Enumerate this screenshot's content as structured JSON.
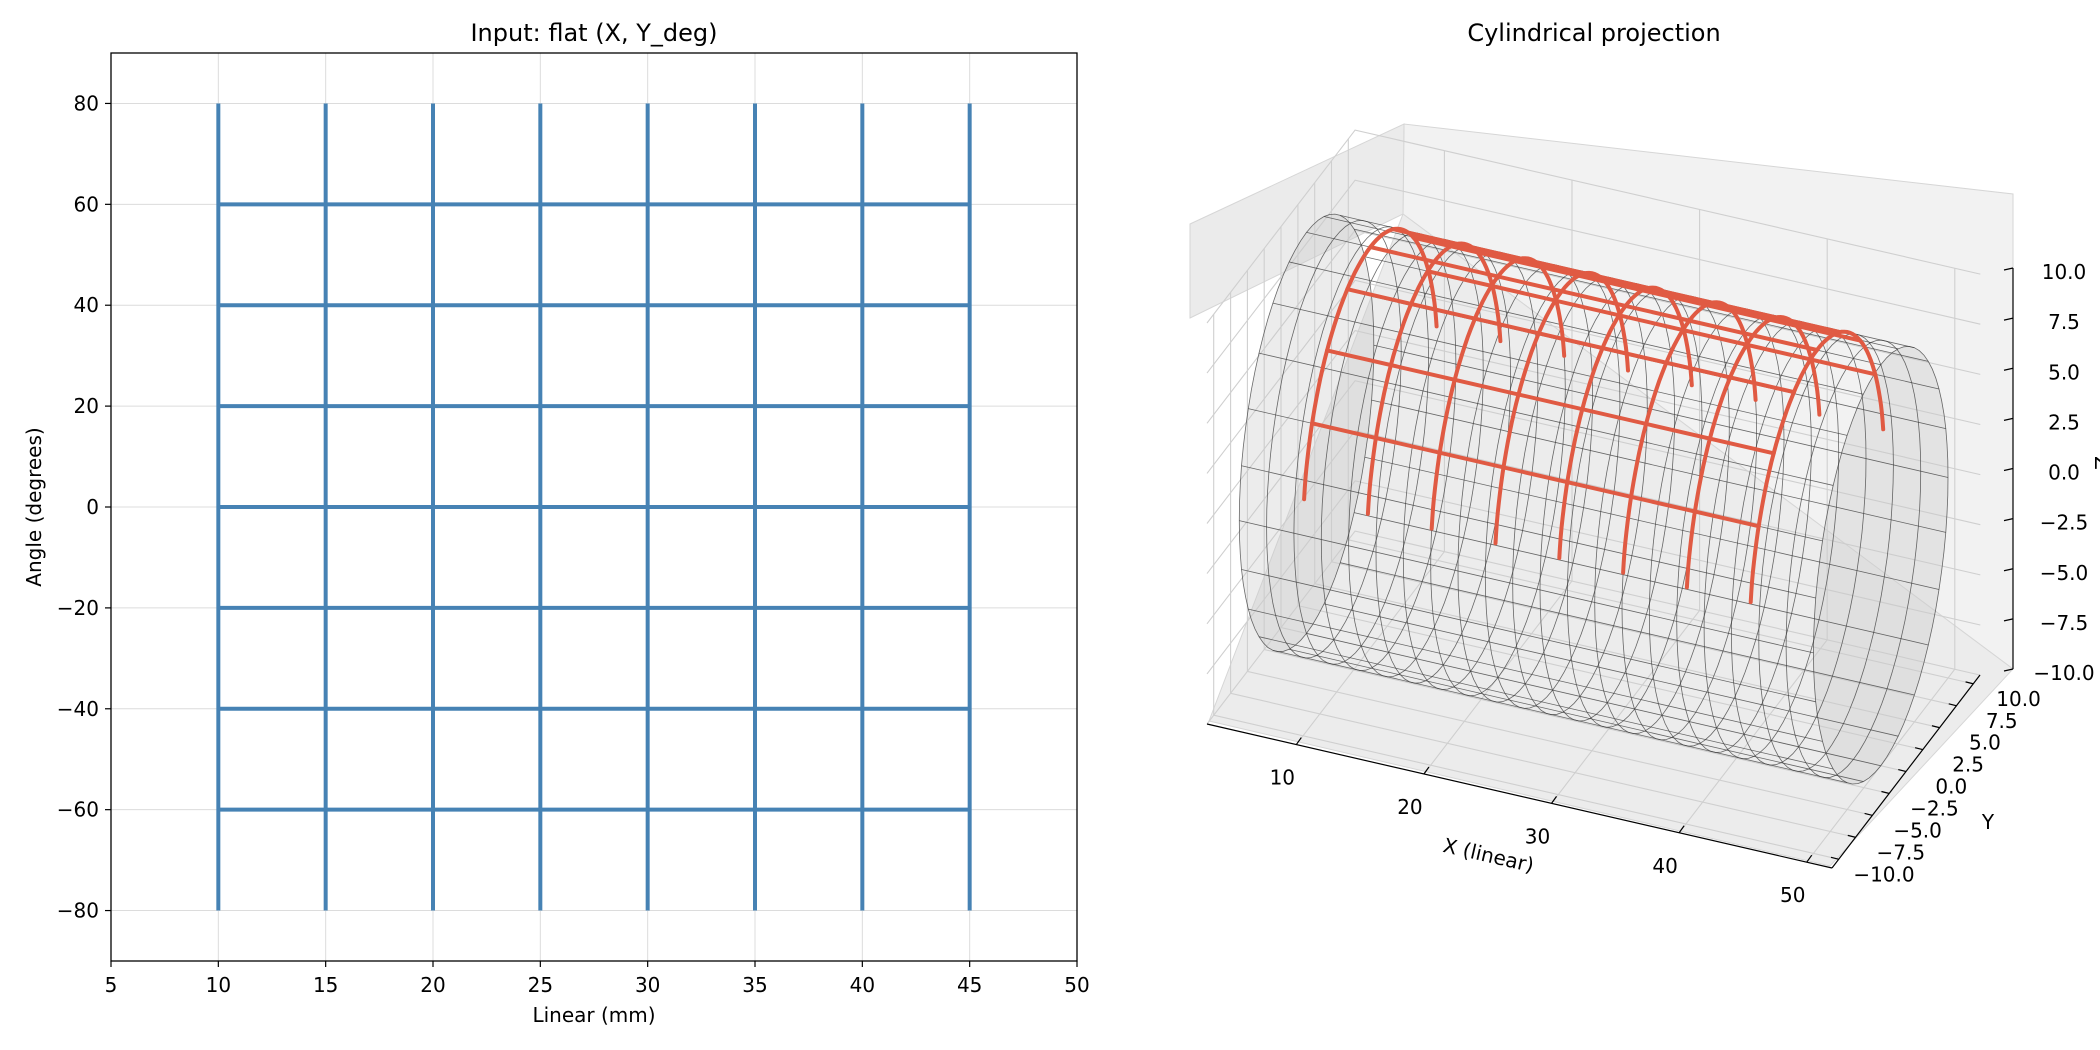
{
  "colors": {
    "flat_grid": "#4682b4",
    "projected_grid": "#e05a43",
    "cylinder_mesh": "#3a3a3a",
    "cylinder_fill": "#c8c8c8",
    "gridline": "#dcdcdc",
    "pane_fill": "#f2f2f2",
    "pane_side": "#ebebeb"
  },
  "chart_data": [
    {
      "type": "line",
      "title": "Input: flat (X, Y_deg)",
      "xlabel": "Linear (mm)",
      "ylabel": "Angle (degrees)",
      "xlim": [
        5,
        50
      ],
      "ylim": [
        -90,
        90
      ],
      "grid": true,
      "xticks": [
        "5",
        "10",
        "15",
        "20",
        "25",
        "30",
        "35",
        "40",
        "45",
        "50"
      ],
      "yticks": [
        "−80",
        "−60",
        "−40",
        "−20",
        "0",
        "20",
        "40",
        "60",
        "80"
      ],
      "vertical_lines": {
        "x": [
          10,
          15,
          20,
          25,
          30,
          35,
          40,
          45
        ],
        "y_range": [
          -80,
          80
        ]
      },
      "horizontal_lines": {
        "y": [
          -60,
          -40,
          -20,
          0,
          20,
          40,
          60
        ],
        "x_range": [
          10,
          45
        ]
      }
    },
    {
      "type": "line3d",
      "title": "Cylindrical projection",
      "xlabel": "X (linear)",
      "ylabel": "Y",
      "zlabel": "Z",
      "xlim": [
        3,
        52
      ],
      "ylim": [
        -11,
        11
      ],
      "zlim": [
        -10,
        10
      ],
      "xticks": [
        "10",
        "20",
        "30",
        "40",
        "50"
      ],
      "yticks": [
        "10.0",
        "7.5",
        "5.0",
        "2.5",
        "0.0",
        "−2.5",
        "−5.0",
        "−7.5",
        "−10.0"
      ],
      "zticks": [
        "10.0",
        "7.5",
        "5.0",
        "2.5",
        "0.0",
        "−2.5",
        "−5.0",
        "−7.5",
        "−10.0"
      ],
      "cylinder": {
        "radius": 10,
        "x_range": [
          5,
          50
        ],
        "ring_count": 22,
        "generator_count": 24
      },
      "projected_grid": {
        "radius": 10,
        "angle_unit": "degrees",
        "vertical_lines": {
          "x": [
            10,
            15,
            20,
            25,
            30,
            35,
            40,
            45
          ],
          "angle_range": [
            -80,
            80
          ]
        },
        "horizontal_lines": {
          "angle": [
            -60,
            -40,
            -20,
            0,
            20,
            40,
            60
          ],
          "x_range": [
            10,
            45
          ]
        }
      }
    }
  ]
}
